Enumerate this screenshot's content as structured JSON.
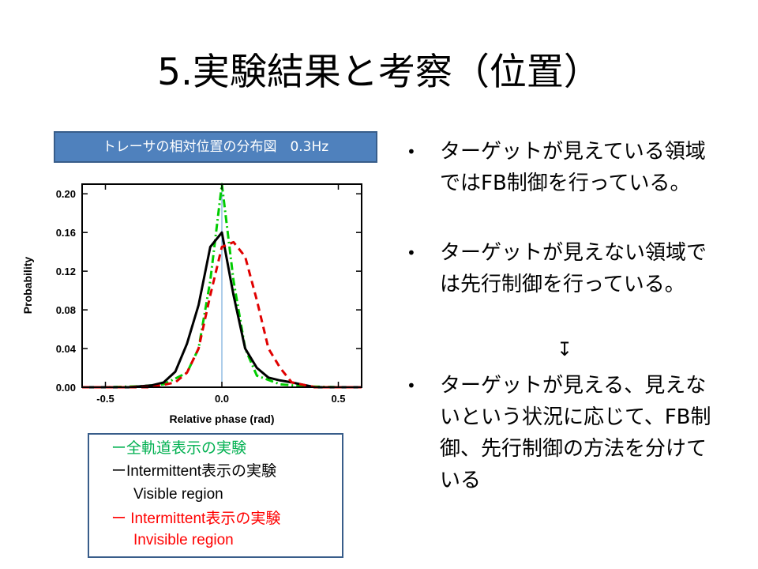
{
  "slide": {
    "title": "5.実験結果と考察（位置）",
    "chart_caption": "トレーサの相対位置の分布図　0.3Hz",
    "legend": {
      "full_label": "ー全軌道表示の実験",
      "intermittent_visible_label": "ーIntermittent表示の実験",
      "visible_region": "Visible region",
      "intermittent_invisible_label": "ー Intermittent表示の実験",
      "invisible_region": "Invisible region"
    },
    "bullets": [
      "ターゲットが見えている領域ではFB制御を行っている。",
      "ターゲットが見えない領域では先行制御を行っている。",
      "ターゲットが見える、見えないという状況に応じて、FB制御、先行制御の方法を分けている"
    ],
    "bullet_symbol": "•",
    "arrow": "↧"
  },
  "colors": {
    "caption_bg": "#4f81bd",
    "box_border": "#385d8a",
    "full": "#00cc00",
    "visible": "#000000",
    "invisible": "#e00000",
    "zero_line": "#5b9bd5"
  },
  "chart_data": {
    "type": "line",
    "title": "",
    "xlabel": "Relative phase (rad)",
    "ylabel": "Probability",
    "xlim": [
      -0.6,
      0.6
    ],
    "ylim": [
      0,
      0.21
    ],
    "xticks": [
      -0.5,
      0.0,
      0.5
    ],
    "xtick_labels": [
      "-0.5",
      "0.0",
      "0.5"
    ],
    "yticks": [
      0,
      0.04,
      0.08,
      0.12,
      0.16,
      0.2
    ],
    "ytick_labels": [
      "0.00",
      "0.04",
      "0.08",
      "0.12",
      "0.16",
      "0.20"
    ],
    "grid": false,
    "legend_position": "below",
    "series": [
      {
        "key": "full",
        "color": "#00cc00",
        "style": "dashdot",
        "x": [
          -0.6,
          -0.5,
          -0.35,
          -0.25,
          -0.15,
          -0.1,
          -0.05,
          0.0,
          0.05,
          0.1,
          0.15,
          0.25,
          0.35,
          0.5,
          0.6
        ],
        "y": [
          0,
          0.0,
          0.001,
          0.003,
          0.015,
          0.04,
          0.11,
          0.21,
          0.11,
          0.04,
          0.012,
          0.003,
          0.001,
          0.0,
          0
        ]
      },
      {
        "key": "visible",
        "color": "#000000",
        "style": "solid",
        "x": [
          -0.6,
          -0.4,
          -0.3,
          -0.25,
          -0.2,
          -0.15,
          -0.1,
          -0.05,
          0.0,
          0.05,
          0.1,
          0.15,
          0.2,
          0.25,
          0.3,
          0.4,
          0.6
        ],
        "y": [
          0,
          0.0,
          0.002,
          0.005,
          0.016,
          0.045,
          0.085,
          0.145,
          0.16,
          0.095,
          0.04,
          0.02,
          0.01,
          0.007,
          0.005,
          0.0,
          0
        ]
      },
      {
        "key": "invisible",
        "color": "#e00000",
        "style": "dashed",
        "x": [
          -0.6,
          -0.3,
          -0.2,
          -0.15,
          -0.1,
          -0.05,
          0.0,
          0.05,
          0.1,
          0.15,
          0.2,
          0.25,
          0.3,
          0.4,
          0.6
        ],
        "y": [
          0,
          0.0,
          0.005,
          0.015,
          0.04,
          0.095,
          0.145,
          0.15,
          0.135,
          0.09,
          0.04,
          0.02,
          0.005,
          0.0,
          0
        ]
      }
    ]
  }
}
